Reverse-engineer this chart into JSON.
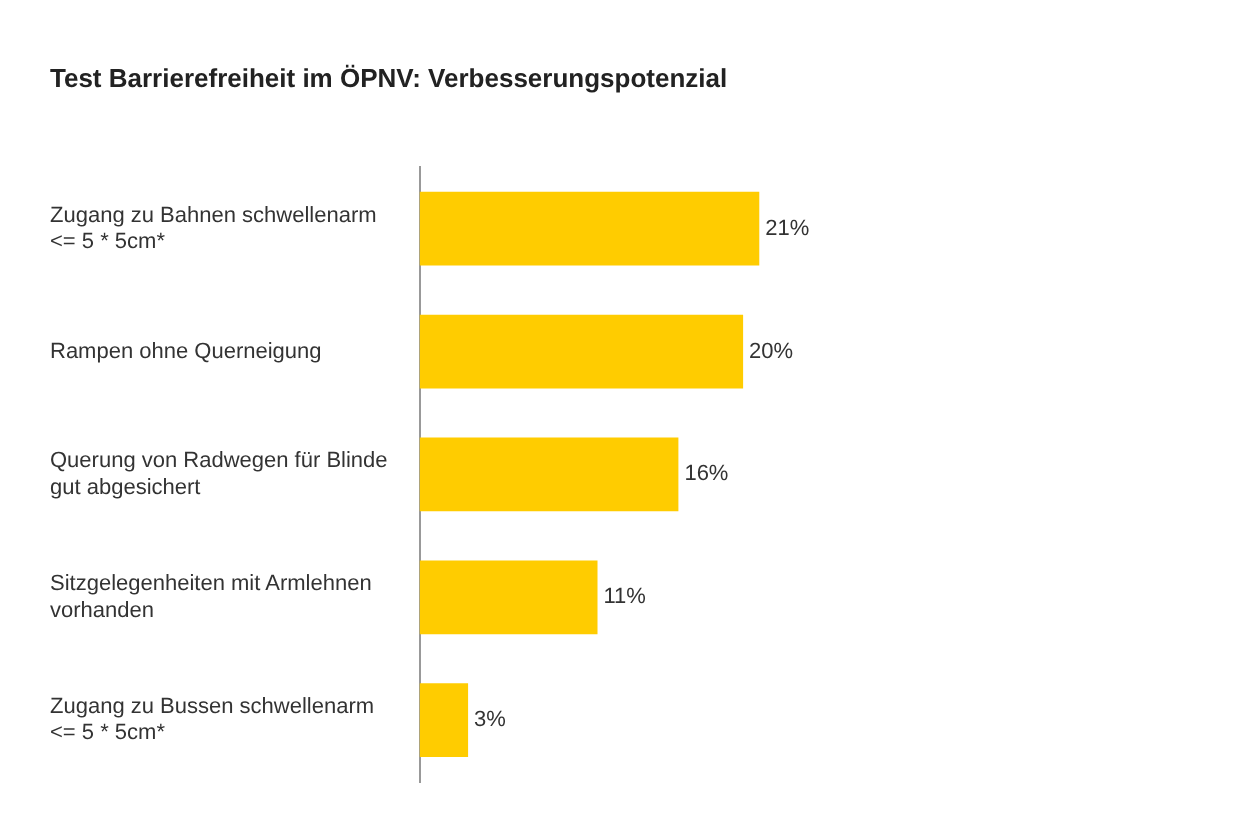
{
  "chart_data": {
    "type": "bar",
    "orientation": "horizontal",
    "title": "Test Barrierefreiheit im ÖPNV: Verbesserungspotenzial",
    "categories": [
      "Zugang zu Bahnen schwellenarm <= 5 * 5cm*",
      "Rampen ohne Querneigung",
      "Querung von Radwegen für Blinde gut abgesichert",
      "Sitzgelegenheiten mit Armlehnen vorhanden",
      "Zugang zu Bussen schwellenarm <= 5 * 5cm*"
    ],
    "values": [
      21,
      20,
      16,
      11,
      3
    ],
    "value_labels": [
      "21%",
      "20%",
      "16%",
      "11%",
      "3%"
    ],
    "color": "#ffcc00",
    "tick_labels": "y"
  }
}
